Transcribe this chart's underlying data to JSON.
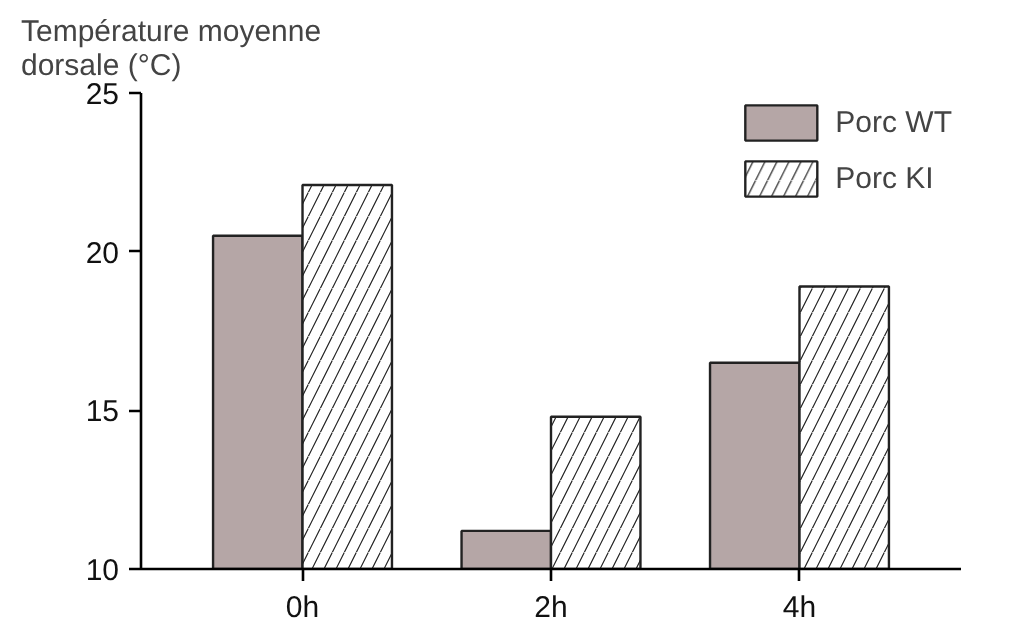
{
  "chart_data": {
    "type": "bar",
    "ylabel": "Température moyenne\ndorsale (°C)",
    "categories": [
      "0h",
      "2h",
      "4h"
    ],
    "series": [
      {
        "name": "Porc WT",
        "color": "#b5a6a6",
        "values": [
          20.5,
          11.2,
          16.5
        ]
      },
      {
        "name": "Porc KI",
        "color": "#ffffff",
        "values": [
          22.1,
          14.8,
          18.9
        ]
      }
    ],
    "ylim": [
      10,
      25
    ],
    "yticks": [
      10,
      15,
      20,
      25
    ],
    "legend": "top right"
  }
}
